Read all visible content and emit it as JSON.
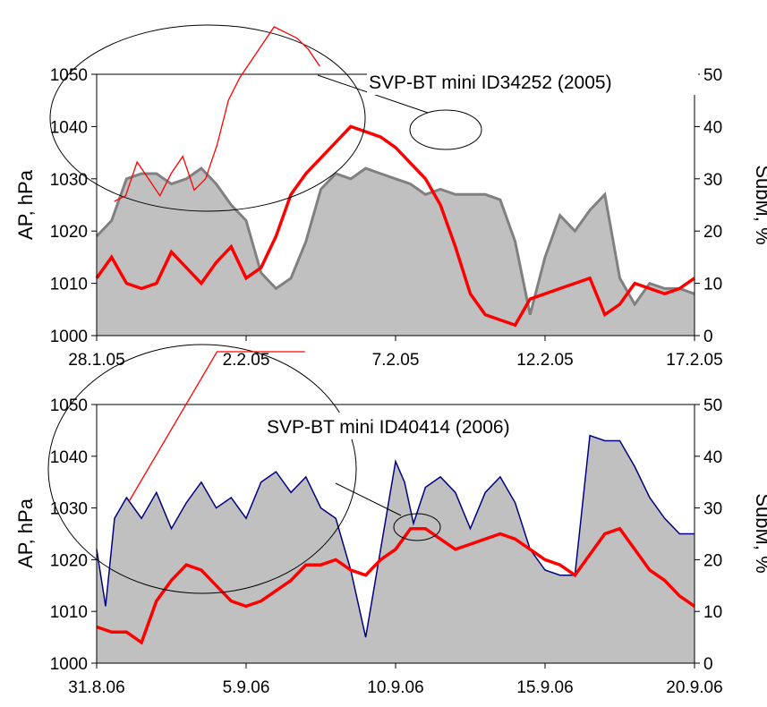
{
  "chart_data": [
    {
      "type": "area",
      "secondary_type": "line",
      "annotation": "SVP-BT mini ID34252 (2005)",
      "ylabel": "AP, hPa",
      "y2label": "SubM, %",
      "ylim": [
        1000,
        1050
      ],
      "y2lim": [
        0,
        50
      ],
      "yticks": [
        "1000",
        "1010",
        "1020",
        "1030",
        "1040",
        "1050"
      ],
      "y2ticks": [
        "0",
        "10",
        "20",
        "30",
        "40",
        "50"
      ],
      "xticks": [
        "28.1.05",
        "2.2.05",
        "7.2.05",
        "12.2.05",
        "17.2.05"
      ],
      "xlim": [
        0,
        20
      ],
      "area_color": "#c0c0c0",
      "area_stroke": "#808080",
      "line_color": "#ff0000",
      "series": [
        {
          "role": "SubM",
          "axis": "right",
          "x": [
            0,
            0.5,
            1,
            1.5,
            2,
            2.5,
            3,
            3.5,
            4,
            4.5,
            5,
            5.5,
            6,
            6.5,
            7,
            7.5,
            8,
            8.5,
            9,
            9.5,
            10,
            10.5,
            11,
            11.5,
            12,
            12.5,
            13,
            13.5,
            14,
            14.5,
            15,
            15.5,
            16,
            16.5,
            17,
            17.5,
            18,
            18.5,
            19,
            19.5,
            20
          ],
          "values": [
            19,
            22,
            30,
            31,
            31,
            29,
            30,
            32,
            29,
            25,
            22,
            12,
            9,
            11,
            18,
            28,
            31,
            30,
            32,
            31,
            30,
            29,
            27,
            28,
            27,
            27,
            27,
            26,
            18,
            4,
            15,
            23,
            20,
            24,
            27,
            11,
            6,
            10,
            9,
            9,
            8
          ]
        },
        {
          "role": "AP",
          "axis": "left",
          "x": [
            0,
            0.5,
            1,
            1.5,
            2,
            2.5,
            3,
            3.5,
            4,
            4.5,
            5,
            5.5,
            6,
            6.5,
            7,
            7.5,
            8,
            8.5,
            9,
            9.5,
            10,
            10.5,
            11,
            11.5,
            12,
            12.5,
            13,
            13.5,
            14,
            14.5,
            15,
            15.5,
            16,
            16.5,
            17,
            17.5,
            18,
            18.5,
            19,
            19.5,
            20
          ],
          "values": [
            1011,
            1015,
            1010,
            1009,
            1010,
            1016,
            1013,
            1010,
            1014,
            1017,
            1011,
            1013,
            1019,
            1027,
            1031,
            1034,
            1037,
            1040,
            1039,
            1038,
            1036,
            1033,
            1030,
            1025,
            1017,
            1008,
            1004,
            1003,
            1002,
            1007,
            1008,
            1009,
            1010,
            1011,
            1004,
            1006,
            1010,
            1009,
            1008,
            1009,
            1011
          ]
        }
      ]
    },
    {
      "type": "area",
      "secondary_type": "line",
      "annotation": "SVP-BT mini ID40414 (2006)",
      "ylabel": "AP, hPa",
      "y2label": "SubM, %",
      "ylim": [
        1000,
        1050
      ],
      "y2lim": [
        0,
        50
      ],
      "yticks": [
        "1000",
        "1010",
        "1020",
        "1030",
        "1040",
        "1050"
      ],
      "y2ticks": [
        "0",
        "10",
        "20",
        "30",
        "40",
        "50"
      ],
      "xticks": [
        "31.8.06",
        "5.9.06",
        "10.9.06",
        "15.9.06",
        "20.9.06"
      ],
      "xlim": [
        0,
        20
      ],
      "area_color": "#c0c0c0",
      "area_stroke": "#000080",
      "line_color": "#ff0000",
      "series": [
        {
          "role": "SubM",
          "axis": "right",
          "x": [
            0,
            0.3,
            0.6,
            1,
            1.5,
            2,
            2.5,
            3,
            3.5,
            4,
            4.5,
            5,
            5.5,
            6,
            6.5,
            7,
            7.5,
            8,
            8.5,
            9,
            9.5,
            10,
            10.3,
            10.6,
            11,
            11.5,
            12,
            12.5,
            13,
            13.5,
            14,
            14.5,
            15,
            15.5,
            16,
            16.5,
            17,
            17.5,
            18,
            18.5,
            19,
            19.5,
            20
          ],
          "values": [
            22,
            11,
            28,
            32,
            28,
            33,
            26,
            31,
            35,
            30,
            32,
            28,
            35,
            37,
            33,
            36,
            30,
            28,
            18,
            5,
            22,
            39,
            35,
            27,
            34,
            36,
            33,
            26,
            33,
            36,
            31,
            22,
            18,
            17,
            17,
            44,
            43,
            43,
            38,
            32,
            28,
            25,
            25
          ]
        },
        {
          "role": "AP",
          "axis": "left",
          "x": [
            0,
            0.5,
            1,
            1.5,
            2,
            2.5,
            3,
            3.5,
            4,
            4.5,
            5,
            5.5,
            6,
            6.5,
            7,
            7.5,
            8,
            8.5,
            9,
            9.5,
            10,
            10.5,
            11,
            11.5,
            12,
            12.5,
            13,
            13.5,
            14,
            14.5,
            15,
            15.5,
            16,
            16.5,
            17,
            17.5,
            18,
            18.5,
            19,
            19.5,
            20
          ],
          "values": [
            1007,
            1006,
            1006,
            1004,
            1012,
            1016,
            1019,
            1018,
            1015,
            1012,
            1011,
            1012,
            1014,
            1016,
            1019,
            1019,
            1020,
            1018,
            1017,
            1020,
            1022,
            1026,
            1026,
            1024,
            1022,
            1023,
            1024,
            1025,
            1024,
            1022,
            1020,
            1019,
            1017,
            1021,
            1025,
            1026,
            1022,
            1018,
            1016,
            1013,
            1011
          ]
        }
      ]
    }
  ]
}
